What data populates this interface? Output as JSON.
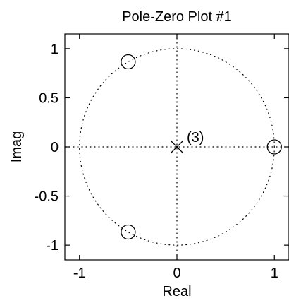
{
  "chart_data": {
    "type": "scatter",
    "title": "Pole-Zero Plot #1",
    "xlabel": "Real",
    "ylabel": "Imag",
    "xlim": [
      -1.15,
      1.15
    ],
    "ylim": [
      -1.15,
      1.15
    ],
    "x_ticks": [
      {
        "value": -1,
        "label": "-1"
      },
      {
        "value": 0,
        "label": "0"
      },
      {
        "value": 1,
        "label": "1"
      }
    ],
    "y_ticks": [
      {
        "value": 1,
        "label": "1"
      },
      {
        "value": 0.5,
        "label": "0.5"
      },
      {
        "value": 0,
        "label": "0"
      },
      {
        "value": -0.5,
        "label": "-0.5"
      },
      {
        "value": -1,
        "label": "-1"
      }
    ],
    "grid": "dotted unit circle and dotted axes",
    "series": [
      {
        "marker": "circle",
        "points": [
          {
            "x": 1,
            "y": 0
          },
          {
            "x": -0.5,
            "y": 0.866
          },
          {
            "x": -0.5,
            "y": -0.866
          }
        ]
      },
      {
        "marker": "x",
        "points": [
          {
            "x": 0,
            "y": 0
          }
        ]
      }
    ],
    "annotations": [
      {
        "text": "(3)",
        "x": 0,
        "y": 0
      }
    ],
    "colors": {
      "axis": "#000000",
      "markers": "#000000",
      "background": "#ffffff"
    }
  }
}
